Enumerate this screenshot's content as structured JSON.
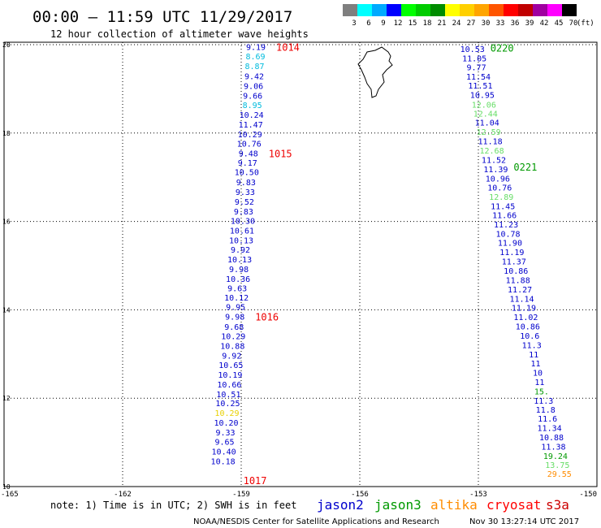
{
  "header": {
    "title": "00:00 – 11:59 UTC 11/29/2017",
    "subtitle": "12 hour collection of altimeter wave heights"
  },
  "legend": {
    "unit": "(ft)",
    "bins": [
      {
        "label": "3",
        "color": "#7f7f7f"
      },
      {
        "label": "6",
        "color": "#00ffff"
      },
      {
        "label": "9",
        "color": "#00aaff"
      },
      {
        "label": "12",
        "color": "#0000ff"
      },
      {
        "label": "15",
        "color": "#00ff00"
      },
      {
        "label": "18",
        "color": "#00cc00"
      },
      {
        "label": "21",
        "color": "#008c00"
      },
      {
        "label": "24",
        "color": "#ffff00"
      },
      {
        "label": "27",
        "color": "#ffd000"
      },
      {
        "label": "30",
        "color": "#ffa500"
      },
      {
        "label": "33",
        "color": "#ff5500"
      },
      {
        "label": "36",
        "color": "#ff0000"
      },
      {
        "label": "39",
        "color": "#c00000"
      },
      {
        "label": "42",
        "color": "#a000a0"
      },
      {
        "label": "45",
        "color": "#ff00ff"
      },
      {
        "label": "70",
        "color": "#000000"
      }
    ]
  },
  "axes": {
    "lon_ticks": [
      "-165",
      "-162",
      "-159",
      "-156",
      "-153",
      "-150"
    ],
    "lat_ticks": [
      "10",
      "12",
      "14",
      "16",
      "18",
      "20"
    ],
    "lon_range": [
      -165,
      -150
    ],
    "lat_range": [
      10,
      20
    ]
  },
  "footer": {
    "note": "note: 1) Time is in UTC; 2) SWH is in feet",
    "satellites": [
      {
        "name": "jason2",
        "color": "#0000cc"
      },
      {
        "name": "jason3",
        "color": "#009900"
      },
      {
        "name": "altika",
        "color": "#ff8c00"
      },
      {
        "name": "cryosat",
        "color": "#ff0000"
      },
      {
        "name": "s3a",
        "color": "#cc0000"
      }
    ],
    "credit": "NOAA/NESDIS Center for Satellite Applications and Research",
    "timestamp": "Nov 30 13:27:14 UTC 2017"
  },
  "colors": {
    "jason2": "#0000cc",
    "cyan": "#00bbdd",
    "jason3_light": "#66dd66",
    "jason3_dark": "#009900",
    "yellow": "#e8d000",
    "orange": "#ff8c00",
    "time": "#ee0000"
  },
  "track_west": {
    "times": [
      {
        "label": "1014",
        "lat": 19.94
      },
      {
        "label": "1015",
        "lat": 17.53
      },
      {
        "label": "1016",
        "lat": 13.83
      },
      {
        "label": "1017",
        "lat": 10.13
      }
    ],
    "points": [
      {
        "lat": 19.95,
        "lon": -158.63,
        "v": "9.19",
        "c": "jason2"
      },
      {
        "lat": 19.74,
        "lon": -158.64,
        "v": "8.69",
        "c": "cyan"
      },
      {
        "lat": 19.52,
        "lon": -158.66,
        "v": "8.87",
        "c": "cyan"
      },
      {
        "lat": 19.29,
        "lon": -158.67,
        "v": "9.42",
        "c": "jason2"
      },
      {
        "lat": 19.07,
        "lon": -158.69,
        "v": "9.06",
        "c": "jason2"
      },
      {
        "lat": 18.85,
        "lon": -158.71,
        "v": "9.66",
        "c": "jason2"
      },
      {
        "lat": 18.64,
        "lon": -158.72,
        "v": "8.95",
        "c": "cyan"
      },
      {
        "lat": 18.42,
        "lon": -158.74,
        "v": "10.24",
        "c": "jason2"
      },
      {
        "lat": 18.2,
        "lon": -158.76,
        "v": "11.47",
        "c": "jason2"
      },
      {
        "lat": 17.98,
        "lon": -158.78,
        "v": "10.29",
        "c": "jason2"
      },
      {
        "lat": 17.77,
        "lon": -158.8,
        "v": "10.76",
        "c": "jason2"
      },
      {
        "lat": 17.55,
        "lon": -158.82,
        "v": "9.48",
        "c": "jason2"
      },
      {
        "lat": 17.33,
        "lon": -158.84,
        "v": "9.17",
        "c": "jason2"
      },
      {
        "lat": 17.12,
        "lon": -158.86,
        "v": "10.50",
        "c": "jason2"
      },
      {
        "lat": 16.89,
        "lon": -158.88,
        "v": "9.83",
        "c": "jason2"
      },
      {
        "lat": 16.67,
        "lon": -158.9,
        "v": "9.33",
        "c": "jason2"
      },
      {
        "lat": 16.45,
        "lon": -158.92,
        "v": "9.52",
        "c": "jason2"
      },
      {
        "lat": 16.23,
        "lon": -158.94,
        "v": "9.83",
        "c": "jason2"
      },
      {
        "lat": 16.02,
        "lon": -158.96,
        "v": "10.30",
        "c": "jason2"
      },
      {
        "lat": 15.8,
        "lon": -158.98,
        "v": "10.61",
        "c": "jason2"
      },
      {
        "lat": 15.58,
        "lon": -159.0,
        "v": "10.13",
        "c": "jason2"
      },
      {
        "lat": 15.37,
        "lon": -159.02,
        "v": "9.92",
        "c": "jason2"
      },
      {
        "lat": 15.15,
        "lon": -159.04,
        "v": "10.13",
        "c": "jason2"
      },
      {
        "lat": 14.93,
        "lon": -159.06,
        "v": "9.98",
        "c": "jason2"
      },
      {
        "lat": 14.71,
        "lon": -159.08,
        "v": "10.36",
        "c": "jason2"
      },
      {
        "lat": 14.49,
        "lon": -159.1,
        "v": "9.63",
        "c": "jason2"
      },
      {
        "lat": 14.28,
        "lon": -159.12,
        "v": "10.12",
        "c": "jason2"
      },
      {
        "lat": 14.07,
        "lon": -159.14,
        "v": "9.95",
        "c": "jason2"
      },
      {
        "lat": 13.85,
        "lon": -159.16,
        "v": "9.98",
        "c": "jason2"
      },
      {
        "lat": 13.62,
        "lon": -159.18,
        "v": "9.68",
        "c": "jason2"
      },
      {
        "lat": 13.41,
        "lon": -159.2,
        "v": "10.29",
        "c": "jason2"
      },
      {
        "lat": 13.19,
        "lon": -159.22,
        "v": "10.88",
        "c": "jason2"
      },
      {
        "lat": 12.97,
        "lon": -159.24,
        "v": "9.92",
        "c": "jason2"
      },
      {
        "lat": 12.76,
        "lon": -159.26,
        "v": "10.65",
        "c": "jason2"
      },
      {
        "lat": 12.54,
        "lon": -159.28,
        "v": "10.19",
        "c": "jason2"
      },
      {
        "lat": 12.32,
        "lon": -159.3,
        "v": "10.66",
        "c": "jason2"
      },
      {
        "lat": 12.1,
        "lon": -159.32,
        "v": "10.51",
        "c": "jason2"
      },
      {
        "lat": 11.89,
        "lon": -159.34,
        "v": "10.25",
        "c": "jason2"
      },
      {
        "lat": 11.67,
        "lon": -159.36,
        "v": "10.29",
        "c": "yellow"
      },
      {
        "lat": 11.45,
        "lon": -159.38,
        "v": "10.20",
        "c": "jason2"
      },
      {
        "lat": 11.23,
        "lon": -159.4,
        "v": "9.33",
        "c": "jason2"
      },
      {
        "lat": 11.02,
        "lon": -159.42,
        "v": "9.65",
        "c": "jason2"
      },
      {
        "lat": 10.8,
        "lon": -159.44,
        "v": "10.40",
        "c": "jason2"
      },
      {
        "lat": 10.58,
        "lon": -159.46,
        "v": "10.18",
        "c": "jason2"
      }
    ]
  },
  "track_east": {
    "times": [
      {
        "label": "0220",
        "lat": 19.92
      },
      {
        "label": "0221",
        "lat": 17.22
      }
    ],
    "points": [
      {
        "lat": 19.91,
        "lon": -153.15,
        "v": "10.53",
        "c": "jason2"
      },
      {
        "lat": 19.7,
        "lon": -153.1,
        "v": "11.05",
        "c": "jason2"
      },
      {
        "lat": 19.49,
        "lon": -153.05,
        "v": "9.77",
        "c": "jason2"
      },
      {
        "lat": 19.28,
        "lon": -153.0,
        "v": "11.54",
        "c": "jason2"
      },
      {
        "lat": 19.08,
        "lon": -152.95,
        "v": "11.51",
        "c": "jason2"
      },
      {
        "lat": 18.87,
        "lon": -152.9,
        "v": "10.95",
        "c": "jason2"
      },
      {
        "lat": 18.65,
        "lon": -152.86,
        "v": "12.06",
        "c": "jason3_light"
      },
      {
        "lat": 18.45,
        "lon": -152.82,
        "v": "12.44",
        "c": "jason3_light"
      },
      {
        "lat": 18.24,
        "lon": -152.78,
        "v": "11.04",
        "c": "jason2"
      },
      {
        "lat": 18.03,
        "lon": -152.74,
        "v": "12.59",
        "c": "jason3_light"
      },
      {
        "lat": 17.82,
        "lon": -152.7,
        "v": "11.18",
        "c": "jason2"
      },
      {
        "lat": 17.61,
        "lon": -152.66,
        "v": "12.68",
        "c": "jason3_light"
      },
      {
        "lat": 17.4,
        "lon": -152.61,
        "v": "11.52",
        "c": "jason2"
      },
      {
        "lat": 17.19,
        "lon": -152.56,
        "v": "11.39",
        "c": "jason2"
      },
      {
        "lat": 16.98,
        "lon": -152.51,
        "v": "10.96",
        "c": "jason2"
      },
      {
        "lat": 16.77,
        "lon": -152.46,
        "v": "10.76",
        "c": "jason2"
      },
      {
        "lat": 16.56,
        "lon": -152.42,
        "v": "12.89",
        "c": "jason3_light"
      },
      {
        "lat": 16.35,
        "lon": -152.38,
        "v": "11.45",
        "c": "jason2"
      },
      {
        "lat": 16.15,
        "lon": -152.34,
        "v": "11.66",
        "c": "jason2"
      },
      {
        "lat": 15.94,
        "lon": -152.3,
        "v": "11.23",
        "c": "jason2"
      },
      {
        "lat": 15.73,
        "lon": -152.25,
        "v": "10.78",
        "c": "jason2"
      },
      {
        "lat": 15.52,
        "lon": -152.2,
        "v": "11.90",
        "c": "jason2"
      },
      {
        "lat": 15.31,
        "lon": -152.15,
        "v": "11.19",
        "c": "jason2"
      },
      {
        "lat": 15.1,
        "lon": -152.1,
        "v": "11.37",
        "c": "jason2"
      },
      {
        "lat": 14.89,
        "lon": -152.05,
        "v": "10.86",
        "c": "jason2"
      },
      {
        "lat": 14.68,
        "lon": -152.0,
        "v": "11.88",
        "c": "jason2"
      },
      {
        "lat": 14.47,
        "lon": -151.95,
        "v": "11.27",
        "c": "jason2"
      },
      {
        "lat": 14.26,
        "lon": -151.9,
        "v": "11.14",
        "c": "jason2"
      },
      {
        "lat": 14.05,
        "lon": -151.85,
        "v": "11.19",
        "c": "jason2"
      },
      {
        "lat": 13.84,
        "lon": -151.8,
        "v": "11.02",
        "c": "jason2"
      },
      {
        "lat": 13.63,
        "lon": -151.75,
        "v": "10.86",
        "c": "jason2"
      },
      {
        "lat": 13.42,
        "lon": -151.7,
        "v": "10.6",
        "c": "jason2"
      },
      {
        "lat": 13.21,
        "lon": -151.65,
        "v": "11.3",
        "c": "jason2"
      },
      {
        "lat": 13.0,
        "lon": -151.6,
        "v": "11",
        "c": "jason2"
      },
      {
        "lat": 12.79,
        "lon": -151.55,
        "v": "11",
        "c": "jason2"
      },
      {
        "lat": 12.58,
        "lon": -151.5,
        "v": "10",
        "c": "jason2"
      },
      {
        "lat": 12.37,
        "lon": -151.45,
        "v": "11",
        "c": "jason2"
      },
      {
        "lat": 12.16,
        "lon": -151.4,
        "v": "15.",
        "c": "jason3_dark"
      },
      {
        "lat": 11.95,
        "lon": -151.35,
        "v": "11.3",
        "c": "jason2"
      },
      {
        "lat": 11.75,
        "lon": -151.3,
        "v": "11.8",
        "c": "jason2"
      },
      {
        "lat": 11.54,
        "lon": -151.25,
        "v": "11.6",
        "c": "jason2"
      },
      {
        "lat": 11.33,
        "lon": -151.2,
        "v": "11.34",
        "c": "jason2"
      },
      {
        "lat": 11.12,
        "lon": -151.15,
        "v": "10.88",
        "c": "jason2"
      },
      {
        "lat": 10.91,
        "lon": -151.1,
        "v": "11.38",
        "c": "jason2"
      },
      {
        "lat": 10.7,
        "lon": -151.05,
        "v": "19.24",
        "c": "jason3_dark"
      },
      {
        "lat": 10.5,
        "lon": -151.0,
        "v": "13.75",
        "c": "jason3_light"
      },
      {
        "lat": 10.29,
        "lon": -150.95,
        "v": "29.55",
        "c": "orange"
      }
    ]
  }
}
